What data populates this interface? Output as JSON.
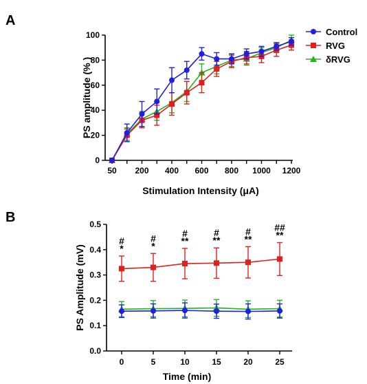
{
  "chart_data": [
    {
      "panel": "A",
      "type": "line",
      "xlabel": "Stimulation Intensity (μA)",
      "ylabel": "PS amplitude (% )",
      "x": [
        50,
        100,
        200,
        300,
        400,
        500,
        600,
        700,
        800,
        900,
        1000,
        1100,
        1200
      ],
      "x_tick_labels": [
        "50",
        "200",
        "400",
        "600",
        "800",
        "1000",
        "1200"
      ],
      "ylim": [
        0,
        100
      ],
      "y_ticks": [
        0,
        20,
        40,
        60,
        80,
        100
      ],
      "legend": "top-right",
      "series": [
        {
          "name": "Control",
          "color": "#1f1fe0",
          "marker": "circle",
          "values": [
            0,
            22,
            37,
            47,
            64,
            72,
            85,
            81,
            81,
            85,
            87,
            91,
            95
          ],
          "errors": [
            0,
            7,
            10,
            10,
            10,
            7,
            5,
            5,
            4,
            4,
            4,
            3,
            3
          ]
        },
        {
          "name": "RVG",
          "color": "#e01f1f",
          "marker": "square",
          "values": [
            0,
            20,
            32,
            36,
            45,
            54,
            62,
            73,
            79,
            82,
            83,
            88,
            92
          ],
          "errors": [
            0,
            5,
            6,
            8,
            9,
            9,
            8,
            6,
            5,
            5,
            5,
            5,
            4
          ]
        },
        {
          "name": "δRVG",
          "color": "#1fb51f",
          "marker": "triangle",
          "values": [
            0,
            21,
            33,
            39,
            46,
            55,
            70,
            75,
            80,
            81,
            86,
            90,
            96
          ],
          "errors": [
            0,
            5,
            6,
            7,
            8,
            8,
            7,
            6,
            5,
            5,
            4,
            4,
            4
          ]
        }
      ]
    },
    {
      "panel": "B",
      "type": "line",
      "xlabel": "Time (min)",
      "ylabel": "PS Amplitude (mV)",
      "x": [
        0,
        5,
        10,
        15,
        20,
        25
      ],
      "ylim": [
        0,
        0.5
      ],
      "y_ticks": [
        "0.0",
        "0.1",
        "0.2",
        "0.3",
        "0.4",
        "0.5"
      ],
      "series": [
        {
          "name": "RVG",
          "color": "#e01f1f",
          "marker": "square",
          "values": [
            0.325,
            0.33,
            0.345,
            0.347,
            0.35,
            0.363
          ],
          "errors": [
            0.05,
            0.055,
            0.06,
            0.06,
            0.062,
            0.065
          ]
        },
        {
          "name": "δRVG",
          "color": "#1fb51f",
          "marker": "triangle",
          "values": [
            0.165,
            0.167,
            0.168,
            0.17,
            0.165,
            0.167
          ],
          "errors": [
            0.03,
            0.032,
            0.033,
            0.033,
            0.033,
            0.033
          ]
        },
        {
          "name": "Control",
          "color": "#1f1fe0",
          "marker": "circle",
          "values": [
            0.157,
            0.158,
            0.16,
            0.157,
            0.156,
            0.158
          ],
          "errors": [
            0.025,
            0.028,
            0.03,
            0.028,
            0.03,
            0.028
          ]
        }
      ],
      "annotations": [
        {
          "x": 0,
          "hash": "#",
          "star": "*"
        },
        {
          "x": 5,
          "hash": "#",
          "star": "*"
        },
        {
          "x": 10,
          "hash": "#",
          "star": "**"
        },
        {
          "x": 15,
          "hash": "#",
          "star": "**"
        },
        {
          "x": 20,
          "hash": "#",
          "star": "**"
        },
        {
          "x": 25,
          "hash": "##",
          "star": "**"
        }
      ]
    }
  ]
}
